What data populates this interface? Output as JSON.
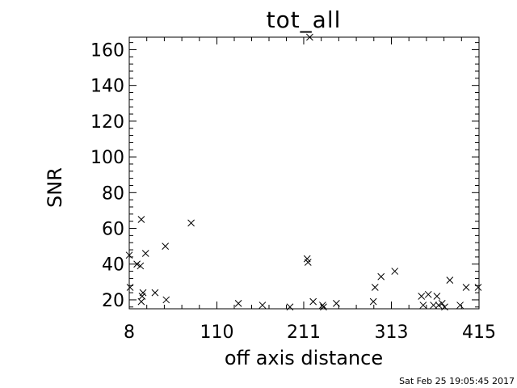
{
  "chart_data": {
    "type": "scatter",
    "title": "tot_all",
    "xlabel": "off axis distance",
    "ylabel": "SNR",
    "xlim": [
      8,
      415
    ],
    "ylim": [
      15,
      167
    ],
    "xticks": [
      8,
      110,
      211,
      313,
      415
    ],
    "yticks": [
      20,
      40,
      60,
      80,
      100,
      120,
      140,
      160
    ],
    "grid": false,
    "marker": "x",
    "points": [
      [
        8,
        45
      ],
      [
        9,
        27
      ],
      [
        17,
        40
      ],
      [
        21,
        39
      ],
      [
        22,
        65
      ],
      [
        22,
        19
      ],
      [
        23,
        22
      ],
      [
        24,
        24
      ],
      [
        27,
        46
      ],
      [
        38,
        24
      ],
      [
        50,
        50
      ],
      [
        51,
        20
      ],
      [
        80,
        63
      ],
      [
        135,
        18
      ],
      [
        163,
        17
      ],
      [
        195,
        16
      ],
      [
        215,
        43
      ],
      [
        216,
        41
      ],
      [
        218,
        167
      ],
      [
        222,
        19
      ],
      [
        233,
        17
      ],
      [
        234,
        16
      ],
      [
        249,
        18
      ],
      [
        292,
        19
      ],
      [
        294,
        27
      ],
      [
        301,
        33
      ],
      [
        317,
        36
      ],
      [
        348,
        22
      ],
      [
        350,
        17
      ],
      [
        356,
        23
      ],
      [
        362,
        17
      ],
      [
        366,
        22
      ],
      [
        368,
        17
      ],
      [
        372,
        18
      ],
      [
        375,
        16
      ],
      [
        381,
        31
      ],
      [
        393,
        17
      ],
      [
        400,
        27
      ],
      [
        414,
        27
      ]
    ]
  },
  "timestamp": "Sat Feb 25 19:05:45 2017"
}
